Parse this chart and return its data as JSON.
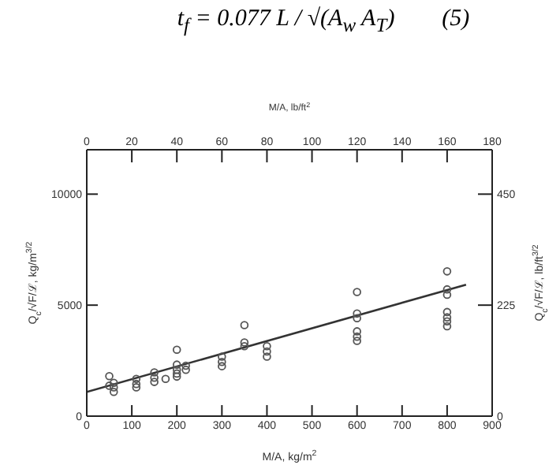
{
  "chart_data": {
    "type": "scatter",
    "annotations": [
      "t$_{f}$ = 0.077 L / √(A$_{w}$ A$_{T}$)        (5)"
    ],
    "xlabel": "M/A, kg/m$^{2}$",
    "x2label": "M/A, lb/ft$^{2}$",
    "ylabel": "Q$_{c}$/√F/ℒ, kg/m$^{3/2}$",
    "y2label": "Q$_{c}$/√F/ℒ, lb/ft$^{3/2}$",
    "xlim": [
      0,
      900
    ],
    "xticks": [
      0,
      100,
      200,
      300,
      400,
      500,
      600,
      700,
      800,
      900
    ],
    "x2lim": [
      0,
      180
    ],
    "x2ticks": [
      0,
      20,
      40,
      60,
      80,
      100,
      120,
      140,
      160,
      180
    ],
    "ylim": [
      0,
      12000
    ],
    "yticks": [
      0,
      5000,
      10000
    ],
    "y2lim": [
      0,
      540
    ],
    "y2ticks": [
      0,
      225,
      450
    ],
    "grid": false,
    "legend": false,
    "series": [
      {
        "marker": "circle",
        "color": "#555555",
        "x": [
          50,
          50,
          60,
          60,
          60,
          110,
          110,
          110,
          150,
          150,
          150,
          175,
          200,
          200,
          200,
          200,
          200,
          220,
          220,
          300,
          300,
          300,
          350,
          350,
          350,
          400,
          400,
          400,
          600,
          600,
          600,
          600,
          600,
          600,
          800,
          800,
          800,
          800,
          800,
          800,
          800
        ],
        "values": [
          1800,
          1370,
          1500,
          1300,
          1090,
          1680,
          1450,
          1300,
          1970,
          1730,
          1540,
          1680,
          2990,
          2320,
          2090,
          1920,
          1780,
          2270,
          2090,
          2680,
          2440,
          2250,
          4100,
          3320,
          3150,
          3150,
          2910,
          2680,
          5590,
          4620,
          4410,
          3820,
          3580,
          3390,
          6520,
          5710,
          5470,
          4690,
          4450,
          4270,
          4050
        ]
      },
      {
        "type": "line",
        "color": "#333333",
        "x": [
          0,
          842
        ],
        "values": [
          1090,
          5920
        ]
      }
    ]
  }
}
